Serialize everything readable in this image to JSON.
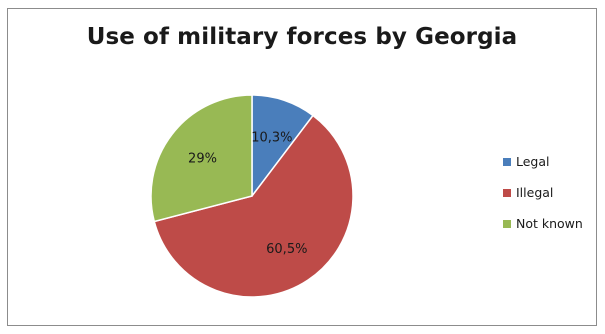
{
  "chart_data": {
    "type": "pie",
    "title": "Use of military forces by Georgia",
    "slices": [
      {
        "label": "Legal",
        "value": 10.3,
        "display": "10,3%",
        "color": "#4a7ebb"
      },
      {
        "label": "Illegal",
        "value": 60.5,
        "display": "60,5%",
        "color": "#be4b48"
      },
      {
        "label": "Not known",
        "value": 29,
        "display": "29%",
        "color": "#98b954"
      }
    ],
    "legend_position": "right",
    "start_angle_deg": 0,
    "direction": "clockwise"
  }
}
